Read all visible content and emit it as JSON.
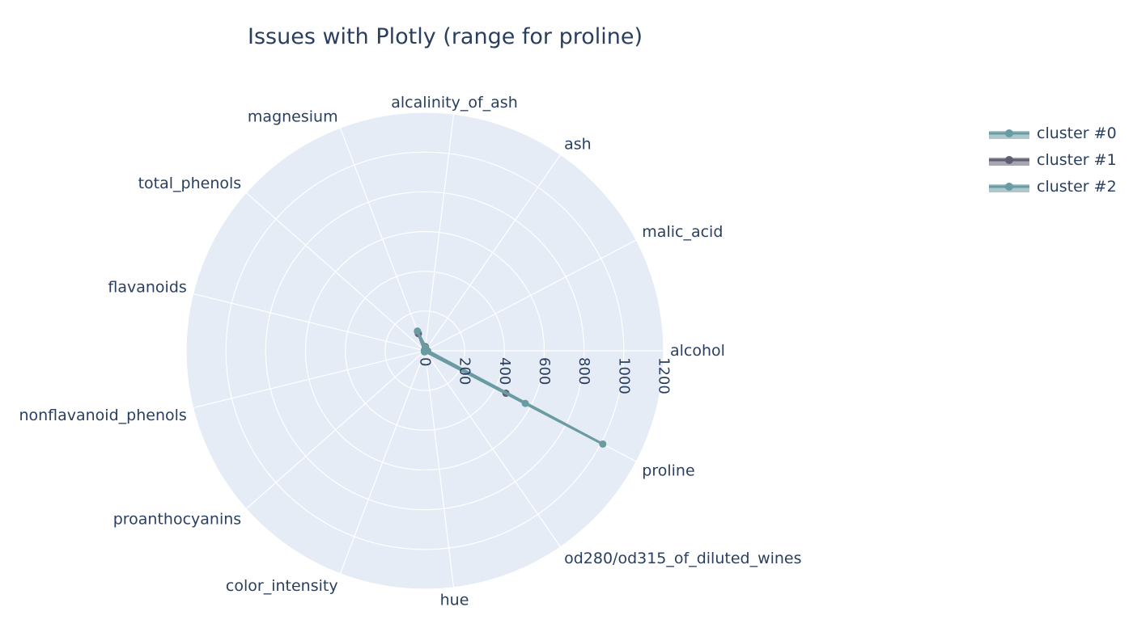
{
  "chart_data": {
    "type": "radar",
    "title": "Issues with Plotly (range for proline)",
    "categories": [
      "alcohol",
      "malic_acid",
      "ash",
      "alcalinity_of_ash",
      "magnesium",
      "total_phenols",
      "flavanoids",
      "nonflavanoid_phenols",
      "proanthocyanins",
      "color_intensity",
      "hue",
      "od280/od315_of_diluted_wines",
      "proline"
    ],
    "radial_range": [
      0,
      1200
    ],
    "radial_ticks": [
      "0",
      "200",
      "400",
      "600",
      "800",
      "1000",
      "1200"
    ],
    "radial_tick_values": [
      0,
      200,
      400,
      600,
      800,
      1000,
      1200
    ],
    "grid": true,
    "legend_position": "top-right",
    "series": [
      {
        "name": "cluster #0",
        "color": "#6a9ba3",
        "values": [
          13.0,
          2.2,
          2.4,
          19.5,
          103,
          2.2,
          2.0,
          0.36,
          1.6,
          5.5,
          0.9,
          2.5,
          570
        ]
      },
      {
        "name": "cluster #1",
        "color": "#5f5f73",
        "values": [
          12.5,
          2.5,
          2.3,
          20.8,
          92,
          2.1,
          1.8,
          0.39,
          1.45,
          4.1,
          0.94,
          2.49,
          460
        ]
      },
      {
        "name": "cluster #2",
        "color": "#6a9ba3",
        "values": [
          13.8,
          1.9,
          2.43,
          17.0,
          106,
          2.87,
          2.98,
          0.29,
          1.9,
          5.5,
          1.06,
          3.16,
          1010
        ]
      }
    ]
  }
}
